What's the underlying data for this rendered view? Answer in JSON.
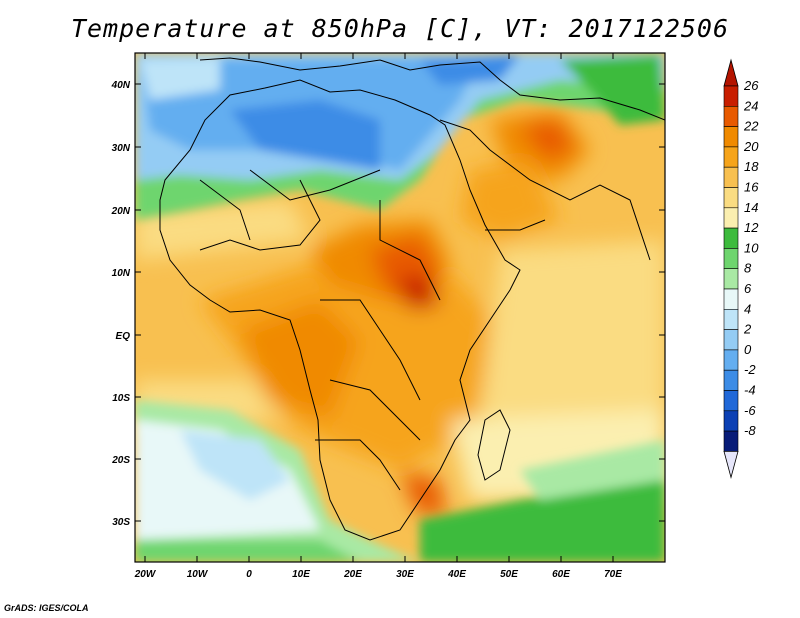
{
  "title": "Temperature at 850hPa [C], VT: 2017122506",
  "footer": "GrADS: IGES/COLA",
  "lat_labels": [
    "40N",
    "30N",
    "20N",
    "10N",
    "EQ",
    "10S",
    "20S",
    "30S"
  ],
  "lon_labels": [
    "20W",
    "10W",
    "0",
    "10E",
    "20E",
    "30E",
    "40E",
    "50E",
    "60E",
    "70E"
  ],
  "colorbar": {
    "labels": [
      "26",
      "24",
      "22",
      "20",
      "18",
      "16",
      "14",
      "12",
      "10",
      "8",
      "6",
      "4",
      "2",
      "0",
      "-2",
      "-4",
      "-6",
      "-8"
    ],
    "colors": [
      "#c81e00",
      "#e85a00",
      "#f08a00",
      "#f6a41a",
      "#f8c050",
      "#fadc82",
      "#fbefb0",
      "#3dbb3d",
      "#6ed56e",
      "#a9e9a4",
      "#e8f8f8",
      "#bee4f8",
      "#94ccf4",
      "#64aef0",
      "#3c8ce6",
      "#2068d8",
      "#0c40b4",
      "#081c78"
    ],
    "top_triangle_color": "#b41400",
    "bottom_triangle_color": "#e6e6fa"
  }
}
